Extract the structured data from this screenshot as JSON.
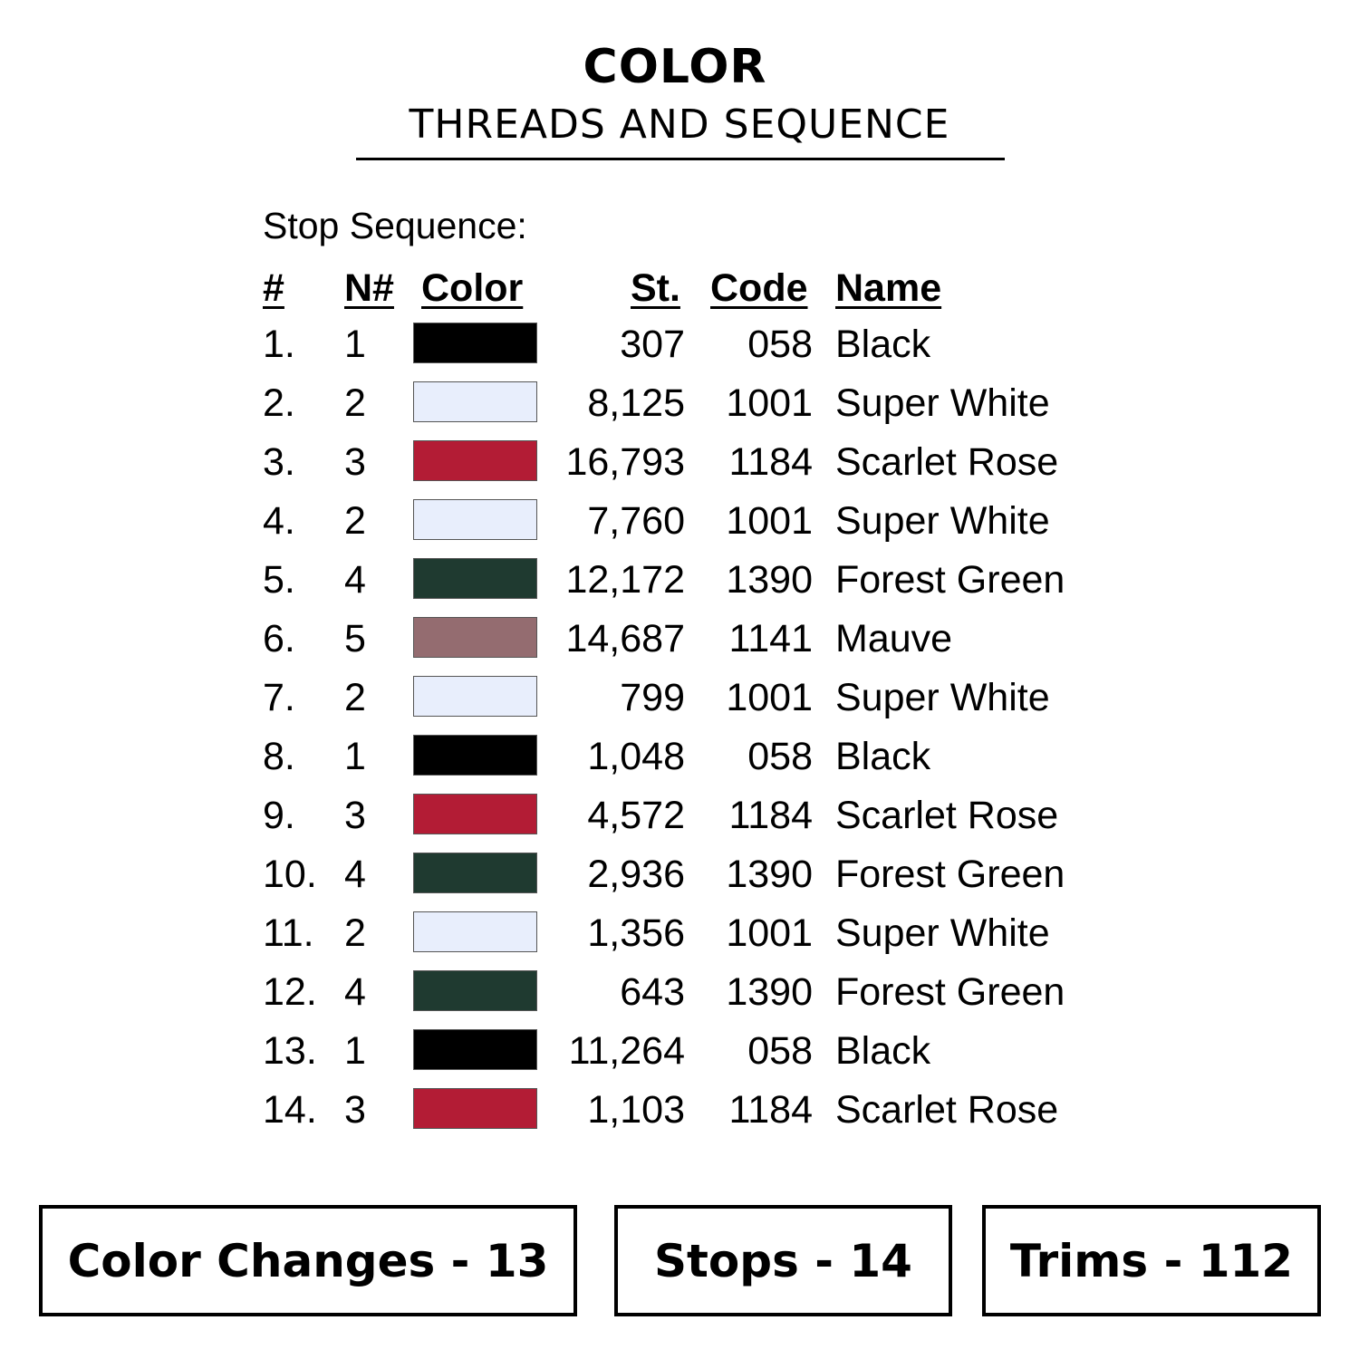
{
  "header": {
    "title": "COLOR",
    "subtitle": "THREADS AND SEQUENCE"
  },
  "stop_sequence_label": "Stop Sequence:",
  "columns": {
    "num": "#",
    "needle": "N#",
    "color": "Color",
    "stitches": "St.",
    "code": "Code",
    "name": "Name"
  },
  "rows": [
    {
      "num": "1.",
      "needle": "1",
      "color": "#000000",
      "stitches": "307",
      "code": "058",
      "name": "Black"
    },
    {
      "num": "2.",
      "needle": "2",
      "color": "#e8eefc",
      "stitches": "8,125",
      "code": "1001",
      "name": "Super White"
    },
    {
      "num": "3.",
      "needle": "3",
      "color": "#b31c35",
      "stitches": "16,793",
      "code": "1184",
      "name": "Scarlet Rose"
    },
    {
      "num": "4.",
      "needle": "2",
      "color": "#e8eefc",
      "stitches": "7,760",
      "code": "1001",
      "name": "Super White"
    },
    {
      "num": "5.",
      "needle": "4",
      "color": "#1f3a30",
      "stitches": "12,172",
      "code": "1390",
      "name": "Forest Green"
    },
    {
      "num": "6.",
      "needle": "5",
      "color": "#946c70",
      "stitches": "14,687",
      "code": "1141",
      "name": "Mauve"
    },
    {
      "num": "7.",
      "needle": "2",
      "color": "#e8eefc",
      "stitches": "799",
      "code": "1001",
      "name": "Super White"
    },
    {
      "num": "8.",
      "needle": "1",
      "color": "#000000",
      "stitches": "1,048",
      "code": "058",
      "name": "Black"
    },
    {
      "num": "9.",
      "needle": "3",
      "color": "#b31c35",
      "stitches": "4,572",
      "code": "1184",
      "name": "Scarlet Rose"
    },
    {
      "num": "10.",
      "needle": "4",
      "color": "#1f3a30",
      "stitches": "2,936",
      "code": "1390",
      "name": "Forest Green"
    },
    {
      "num": "11.",
      "needle": "2",
      "color": "#e8eefc",
      "stitches": "1,356",
      "code": "1001",
      "name": "Super White"
    },
    {
      "num": "12.",
      "needle": "4",
      "color": "#1f3a30",
      "stitches": "643",
      "code": "1390",
      "name": "Forest Green"
    },
    {
      "num": "13.",
      "needle": "1",
      "color": "#000000",
      "stitches": "11,264",
      "code": "058",
      "name": "Black"
    },
    {
      "num": "14.",
      "needle": "3",
      "color": "#b31c35",
      "stitches": "1,103",
      "code": "1184",
      "name": "Scarlet Rose"
    }
  ],
  "summary": {
    "color_changes": "Color Changes - 13",
    "stops": "Stops - 14",
    "trims": "Trims - 112"
  }
}
